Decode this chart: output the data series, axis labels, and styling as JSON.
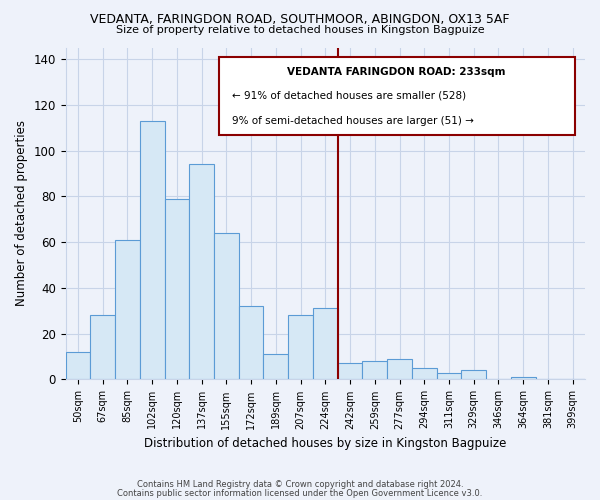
{
  "title1": "VEDANTA, FARINGDON ROAD, SOUTHMOOR, ABINGDON, OX13 5AF",
  "title2": "Size of property relative to detached houses in Kingston Bagpuize",
  "xlabel": "Distribution of detached houses by size in Kingston Bagpuize",
  "ylabel": "Number of detached properties",
  "footer1": "Contains HM Land Registry data © Crown copyright and database right 2024.",
  "footer2": "Contains public sector information licensed under the Open Government Licence v3.0.",
  "bar_labels": [
    "50sqm",
    "67sqm",
    "85sqm",
    "102sqm",
    "120sqm",
    "137sqm",
    "155sqm",
    "172sqm",
    "189sqm",
    "207sqm",
    "224sqm",
    "242sqm",
    "259sqm",
    "277sqm",
    "294sqm",
    "311sqm",
    "329sqm",
    "346sqm",
    "364sqm",
    "381sqm",
    "399sqm"
  ],
  "bar_values": [
    12,
    28,
    61,
    113,
    79,
    94,
    64,
    32,
    11,
    28,
    31,
    7,
    8,
    9,
    5,
    3,
    4,
    0,
    1,
    0,
    0
  ],
  "bar_color": "#d6e8f5",
  "bar_edge_color": "#5b9bd5",
  "vline_x": 10.5,
  "vline_color": "#8b0000",
  "annotation_title": "VEDANTA FARINGDON ROAD: 233sqm",
  "annotation_line1": "← 91% of detached houses are smaller (528)",
  "annotation_line2": "9% of semi-detached houses are larger (51) →",
  "ylim": [
    0,
    145
  ],
  "background_color": "#eef2fa",
  "grid_color": "#c8d4e8"
}
